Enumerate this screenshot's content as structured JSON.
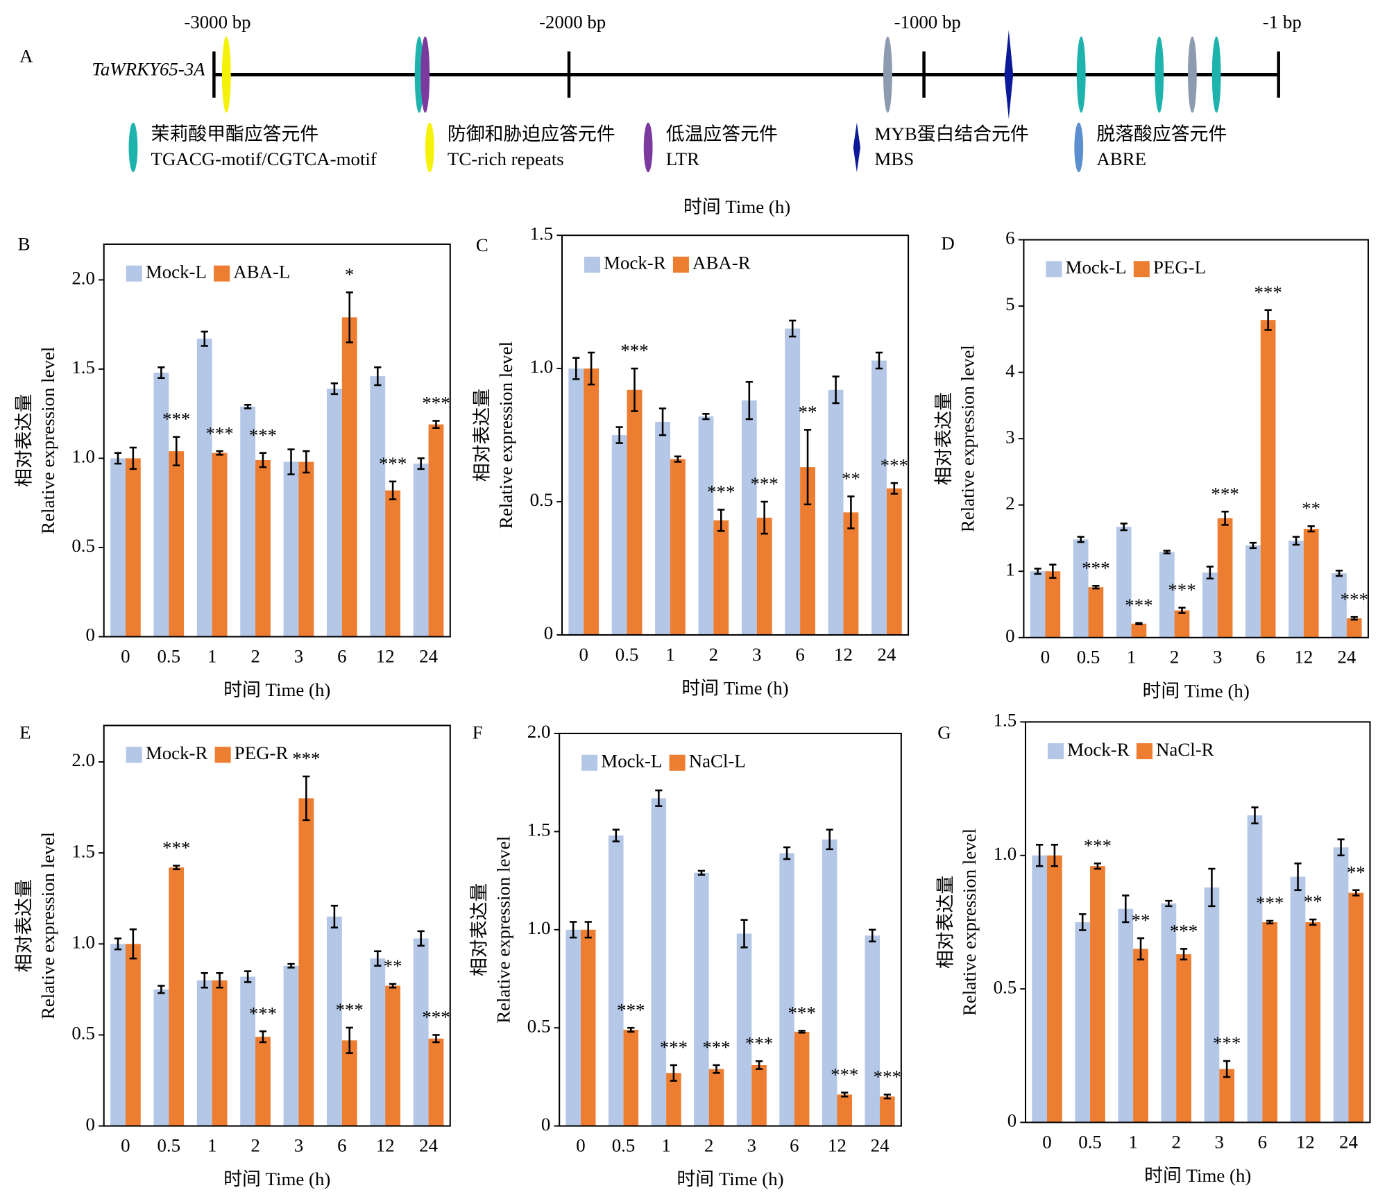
{
  "panel_a": {
    "label": "A",
    "gene": "TaWRKY65-3A",
    "caption": "时间 Time (h)",
    "xlim": [
      -3000,
      -1
    ],
    "xticks": [
      {
        "value": -3000,
        "label": "-3000 bp"
      },
      {
        "value": -2000,
        "label": "-2000 bp"
      },
      {
        "value": -1000,
        "label": "-1000 bp"
      },
      {
        "value": -1,
        "label": "-1 bp"
      }
    ],
    "legend": [
      {
        "name": "茉莉酸甲酯应答元件",
        "motif": "TGACG-motif/CGTCA-motif",
        "color": "#1fb3ad",
        "shape": "ellipse"
      },
      {
        "name": "防御和胁迫应答元件",
        "motif": "TC-rich repeats",
        "color": "#f5f20a",
        "shape": "ellipse"
      },
      {
        "name": "低温应答元件",
        "motif": "LTR",
        "color": "#7a3a9e",
        "shape": "ellipse"
      },
      {
        "name": "MYB蛋白结合元件",
        "motif": "MBS",
        "color": "#0c1a99",
        "shape": "diamond"
      },
      {
        "name": "脱落酸应答元件",
        "motif": "ABRE",
        "color": "#5b8fd0",
        "shape": "ellipse"
      }
    ],
    "elements": [
      {
        "element": 1,
        "position": -2965
      },
      {
        "element": 0,
        "position": -2422
      },
      {
        "element": 2,
        "position": -2405
      },
      {
        "element": 4,
        "position": -1102,
        "color": "#8c9bb0"
      },
      {
        "element": 3,
        "position": -761
      },
      {
        "element": 0,
        "position": -557
      },
      {
        "element": 0,
        "position": -337
      },
      {
        "element": 4,
        "position": -244,
        "color": "#8c9bb0"
      },
      {
        "element": 0,
        "position": -176
      }
    ]
  },
  "chart_data": [
    {
      "type": "bar",
      "panel": "B",
      "xlabel": "时间 Time (h)",
      "ylabel": [
        "相对表达量",
        "Relative expression level"
      ],
      "categories": [
        "0",
        "0.5",
        "1",
        "2",
        "3",
        "6",
        "12",
        "24"
      ],
      "ylim": [
        0,
        2.2
      ],
      "yticks": [
        0,
        0.5,
        {
          "value": 1,
          "label": "1.0"
        },
        1.5,
        {
          "value": 2,
          "label": "2.0"
        }
      ],
      "legend": "top-left",
      "series": [
        {
          "name": "Mock-L",
          "color": "#b4c7e7",
          "values": [
            1.0,
            1.48,
            1.67,
            1.29,
            0.98,
            1.39,
            1.46,
            0.97
          ],
          "errors": [
            0.03,
            0.03,
            0.04,
            0.01,
            0.07,
            0.03,
            0.05,
            0.03
          ]
        },
        {
          "name": "ABA-L",
          "color": "#ed7d31",
          "values": [
            1.0,
            1.04,
            1.03,
            0.99,
            0.98,
            1.79,
            0.82,
            1.19
          ],
          "errors": [
            0.06,
            0.08,
            0.01,
            0.04,
            0.06,
            0.14,
            0.05,
            0.02
          ]
        }
      ],
      "significance": [
        null,
        "***",
        "***",
        "***",
        null,
        "*",
        "***",
        "***"
      ]
    },
    {
      "type": "bar",
      "panel": "C",
      "xlabel": "时间 Time (h)",
      "ylabel": [
        "相对表达量",
        "Relative expression level"
      ],
      "categories": [
        "0",
        "0.5",
        "1",
        "2",
        "3",
        "6",
        "12",
        "24"
      ],
      "ylim": [
        0,
        1.5
      ],
      "yticks": [
        0,
        0.5,
        {
          "value": 1,
          "label": "1.0"
        },
        1.5
      ],
      "legend": "top-left",
      "series": [
        {
          "name": "Mock-R",
          "color": "#b4c7e7",
          "values": [
            1.0,
            0.75,
            0.8,
            0.82,
            0.88,
            1.15,
            0.92,
            1.03
          ],
          "errors": [
            0.04,
            0.03,
            0.05,
            0.01,
            0.07,
            0.03,
            0.05,
            0.03
          ]
        },
        {
          "name": "ABA-R",
          "color": "#ed7d31",
          "values": [
            1.0,
            0.92,
            0.66,
            0.43,
            0.44,
            0.63,
            0.46,
            0.55
          ],
          "errors": [
            0.06,
            0.08,
            0.01,
            0.04,
            0.06,
            0.14,
            0.06,
            0.02
          ]
        }
      ],
      "significance": [
        null,
        "***",
        null,
        "***",
        "***",
        "**",
        "**",
        "***"
      ]
    },
    {
      "type": "bar",
      "panel": "D",
      "xlabel": "时间 Time (h)",
      "ylabel": [
        "相对表达量",
        "Relative expression level"
      ],
      "categories": [
        "0",
        "0.5",
        "1",
        "2",
        "3",
        "6",
        "12",
        "24"
      ],
      "ylim": [
        0,
        6
      ],
      "yticks": [
        0,
        1,
        2,
        3,
        4,
        5,
        6
      ],
      "legend": "top-left",
      "series": [
        {
          "name": "Mock-L",
          "color": "#b4c7e7",
          "values": [
            1.0,
            1.48,
            1.67,
            1.29,
            0.98,
            1.39,
            1.46,
            0.97
          ],
          "errors": [
            0.04,
            0.04,
            0.05,
            0.02,
            0.09,
            0.04,
            0.06,
            0.04
          ]
        },
        {
          "name": "PEG-L",
          "color": "#ed7d31",
          "values": [
            1.0,
            0.76,
            0.21,
            0.41,
            1.8,
            4.79,
            1.64,
            0.29
          ],
          "errors": [
            0.1,
            0.02,
            0.01,
            0.04,
            0.1,
            0.15,
            0.04,
            0.02
          ]
        }
      ],
      "significance": [
        null,
        "***",
        "***",
        "***",
        "***",
        "***",
        "**",
        "***"
      ]
    },
    {
      "type": "bar",
      "panel": "E",
      "xlabel": "时间 Time (h)",
      "ylabel": [
        "相对表达量",
        "Relative expression level"
      ],
      "categories": [
        "0",
        "0.5",
        "1",
        "2",
        "3",
        "6",
        "12",
        "24"
      ],
      "ylim": [
        0,
        2.2
      ],
      "yticks": [
        0,
        0.5,
        {
          "value": 1,
          "label": "1.0"
        },
        1.5,
        {
          "value": 2,
          "label": "2.0"
        }
      ],
      "legend": "top-left",
      "series": [
        {
          "name": "Mock-R",
          "color": "#b4c7e7",
          "values": [
            1.0,
            0.75,
            0.8,
            0.82,
            0.88,
            1.15,
            0.92,
            1.03
          ],
          "errors": [
            0.03,
            0.02,
            0.04,
            0.03,
            0.01,
            0.06,
            0.04,
            0.04
          ]
        },
        {
          "name": "PEG-R",
          "color": "#ed7d31",
          "values": [
            1.0,
            1.42,
            0.8,
            0.49,
            1.8,
            0.47,
            0.77,
            0.48
          ],
          "errors": [
            0.08,
            0.01,
            0.04,
            0.03,
            0.12,
            0.07,
            0.01,
            0.02
          ]
        }
      ],
      "significance": [
        null,
        "***",
        null,
        "***",
        "***",
        "***",
        "**",
        "***"
      ]
    },
    {
      "type": "bar",
      "panel": "F",
      "xlabel": "时间 Time (h)",
      "ylabel": [
        "相对表达量",
        "Relative expression level"
      ],
      "categories": [
        "0",
        "0.5",
        "1",
        "2",
        "3",
        "6",
        "12",
        "24"
      ],
      "ylim": [
        0,
        2
      ],
      "yticks": [
        0,
        0.5,
        {
          "value": 1,
          "label": "1.0"
        },
        1.5,
        {
          "value": 2,
          "label": "2.0"
        }
      ],
      "legend": "top-left",
      "series": [
        {
          "name": "Mock-L",
          "color": "#b4c7e7",
          "values": [
            1.0,
            1.48,
            1.67,
            1.29,
            0.98,
            1.39,
            1.46,
            0.97
          ],
          "errors": [
            0.04,
            0.03,
            0.04,
            0.01,
            0.07,
            0.03,
            0.05,
            0.03
          ]
        },
        {
          "name": "NaCl-L",
          "color": "#ed7d31",
          "values": [
            1.0,
            0.49,
            0.27,
            0.29,
            0.31,
            0.48,
            0.16,
            0.15
          ],
          "errors": [
            0.04,
            0.01,
            0.04,
            0.02,
            0.02,
            0.005,
            0.01,
            0.01
          ]
        }
      ],
      "significance": [
        null,
        "***",
        "***",
        "***",
        "***",
        "***",
        "***",
        "***"
      ]
    },
    {
      "type": "bar",
      "panel": "G",
      "xlabel": "时间 Time (h)",
      "ylabel": [
        "相对表达量",
        "Relative expression level"
      ],
      "categories": [
        "0",
        "0.5",
        "1",
        "2",
        "3",
        "6",
        "12",
        "24"
      ],
      "ylim": [
        0,
        1.5
      ],
      "yticks": [
        0,
        0.5,
        {
          "value": 1,
          "label": "1.0"
        },
        1.5
      ],
      "legend": "top-left",
      "series": [
        {
          "name": "Mock-R",
          "color": "#b4c7e7",
          "values": [
            1.0,
            0.75,
            0.8,
            0.82,
            0.88,
            1.15,
            0.92,
            1.03
          ],
          "errors": [
            0.04,
            0.03,
            0.05,
            0.01,
            0.07,
            0.03,
            0.05,
            0.03
          ]
        },
        {
          "name": "NaCl-R",
          "color": "#ed7d31",
          "values": [
            1.0,
            0.96,
            0.65,
            0.63,
            0.2,
            0.75,
            0.75,
            0.86
          ],
          "errors": [
            0.04,
            0.01,
            0.04,
            0.02,
            0.03,
            0.005,
            0.01,
            0.01
          ]
        }
      ],
      "significance": [
        null,
        "***",
        "**",
        "***",
        "***",
        "***",
        "**",
        "**"
      ]
    }
  ]
}
